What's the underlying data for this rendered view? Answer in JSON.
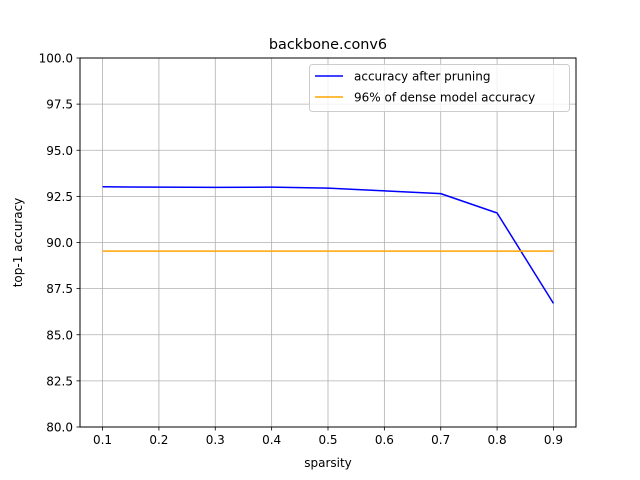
{
  "chart_data": {
    "type": "line",
    "title": "backbone.conv6",
    "xlabel": "sparsity",
    "ylabel": "top-1 accuracy",
    "xlim": [
      0.06,
      0.94
    ],
    "ylim": [
      80.0,
      100.0
    ],
    "xticks": [
      "0.1",
      "0.2",
      "0.3",
      "0.4",
      "0.5",
      "0.6",
      "0.7",
      "0.8",
      "0.9"
    ],
    "yticks": [
      "80.0",
      "82.5",
      "85.0",
      "87.5",
      "90.0",
      "92.5",
      "95.0",
      "97.5",
      "100.0"
    ],
    "grid": true,
    "legend_position": "top-right",
    "x": [
      0.1,
      0.2,
      0.3,
      0.4,
      0.5,
      0.6,
      0.7,
      0.8,
      0.9
    ],
    "series": [
      {
        "name": "accuracy after pruning",
        "color": "#0000ff",
        "values": [
          93.02,
          93.0,
          92.99,
          93.0,
          92.95,
          92.8,
          92.65,
          91.6,
          86.7
        ]
      },
      {
        "name": "96% of dense model accuracy",
        "color": "#ffa500",
        "values": [
          89.53,
          89.53,
          89.53,
          89.53,
          89.53,
          89.53,
          89.53,
          89.53,
          89.53
        ]
      }
    ]
  }
}
